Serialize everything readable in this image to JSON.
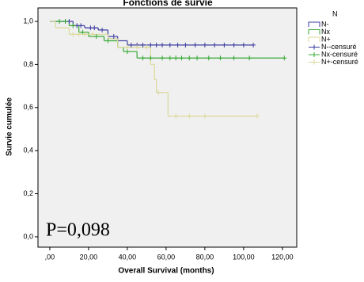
{
  "chart_data": {
    "type": "line",
    "title": "Fonctions de survie",
    "x_label": "Overall Survival (months)",
    "y_label": "Survie cumulée",
    "legend_title": "N",
    "annotation": "P=0,098",
    "xlim": [
      -6.1,
      127.4
    ],
    "ylim": [
      -0.048,
      1.0625
    ],
    "xticks": [
      {
        "value": 0,
        "label": ",00"
      },
      {
        "value": 20,
        "label": "20,00"
      },
      {
        "value": 40,
        "label": "40,00"
      },
      {
        "value": 60,
        "label": "60,00"
      },
      {
        "value": 80,
        "label": "80,00"
      },
      {
        "value": 100,
        "label": "100,00"
      },
      {
        "value": 120,
        "label": "120,00"
      }
    ],
    "yticks": [
      {
        "value": 0,
        "label": "0,0"
      },
      {
        "value": 0.2,
        "label": "0,2"
      },
      {
        "value": 0.4,
        "label": "0,4"
      },
      {
        "value": 0.6,
        "label": "0,6"
      },
      {
        "value": 0.8,
        "label": "0,8"
      },
      {
        "value": 1,
        "label": "1,0"
      }
    ],
    "series": [
      {
        "name": "N-",
        "color": "#3b3ba0",
        "style": "step",
        "x": [
          0,
          12,
          18,
          25,
          30,
          35,
          40,
          105
        ],
        "values": [
          1,
          0.98,
          0.97,
          0.96,
          0.93,
          0.91,
          0.89,
          0.89
        ]
      },
      {
        "name": "Nx",
        "color": "#33a833",
        "style": "step",
        "x": [
          0,
          10,
          15,
          20,
          28,
          35,
          38,
          45,
          121
        ],
        "values": [
          1,
          0.98,
          0.95,
          0.93,
          0.91,
          0.88,
          0.86,
          0.83,
          0.83
        ]
      },
      {
        "name": "N+",
        "color": "#d9d99a",
        "style": "step",
        "x": [
          0,
          3,
          10,
          30,
          35,
          52,
          54,
          55,
          61,
          107
        ],
        "values": [
          1,
          0.97,
          0.94,
          0.92,
          0.88,
          0.8,
          0.73,
          0.67,
          0.56,
          0.56
        ]
      },
      {
        "name": "N--censuré",
        "color": "#3b3ba0",
        "style": "censor",
        "x": [
          8,
          10,
          14,
          16,
          21,
          23,
          27,
          33,
          42,
          45,
          48,
          52,
          55,
          58,
          62,
          66,
          70,
          75,
          80,
          85,
          90,
          95,
          100,
          105
        ],
        "values": [
          1,
          1,
          0.98,
          0.98,
          0.97,
          0.97,
          0.96,
          0.93,
          0.89,
          0.89,
          0.89,
          0.89,
          0.89,
          0.89,
          0.89,
          0.89,
          0.89,
          0.89,
          0.89,
          0.89,
          0.89,
          0.89,
          0.89,
          0.89
        ]
      },
      {
        "name": "Nx-censuré",
        "color": "#33a833",
        "style": "censor",
        "x": [
          5,
          8,
          12,
          17,
          24,
          30,
          40,
          48,
          52,
          58,
          62,
          65,
          68,
          72,
          76,
          82,
          88,
          95,
          103,
          121
        ],
        "values": [
          1,
          1,
          0.98,
          0.95,
          0.93,
          0.91,
          0.86,
          0.83,
          0.83,
          0.83,
          0.83,
          0.83,
          0.83,
          0.83,
          0.83,
          0.83,
          0.83,
          0.83,
          0.83,
          0.83
        ]
      },
      {
        "name": "N+-censuré",
        "color": "#d9d99a",
        "style": "censor",
        "x": [
          12,
          15,
          18,
          22,
          40,
          45,
          50,
          56,
          65,
          72,
          80,
          107
        ],
        "values": [
          0.94,
          0.94,
          0.94,
          0.94,
          0.88,
          0.88,
          0.88,
          0.67,
          0.56,
          0.56,
          0.56,
          0.56
        ]
      }
    ]
  }
}
